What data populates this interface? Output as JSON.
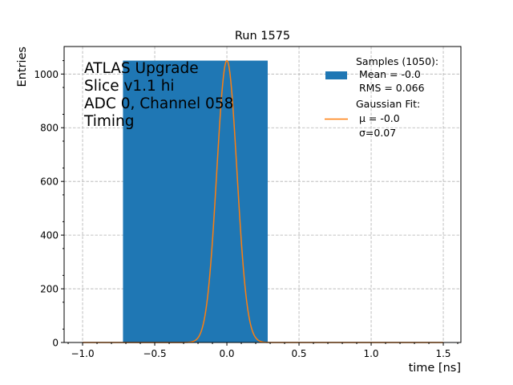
{
  "chart_data": {
    "type": "bar",
    "title": "Run 1575",
    "xlabel": "time [ns]",
    "ylabel": "Entries",
    "xlim": [
      -1.128,
      1.622
    ],
    "ylim": [
      0,
      1102.5
    ],
    "xticks": [
      -1.0,
      -0.5,
      0.0,
      0.5,
      1.0,
      1.5
    ],
    "xtick_labels": [
      "−1.0",
      "−0.5",
      "0.0",
      "0.5",
      "1.0",
      "1.5"
    ],
    "yticks": [
      0,
      200,
      400,
      600,
      800,
      1000
    ],
    "ytick_labels": [
      "0",
      "200",
      "400",
      "600",
      "800",
      "1000"
    ],
    "grid": true,
    "annotation": [
      "ATLAS Upgrade",
      "Slice v1.1 hi",
      "ADC 0, Channel 058",
      "Timing"
    ],
    "histogram": {
      "name": "Samples",
      "bin_edges": [
        -0.72,
        0.283
      ],
      "counts": [
        1050
      ],
      "color": "#1f77b4"
    },
    "fit": {
      "name": "Gaussian Fit",
      "amplitude": 1050,
      "mu": 0.0,
      "sigma": 0.07,
      "x_range": [
        -1.0,
        1.5
      ],
      "color": "#ff7f0e"
    },
    "legend": {
      "placement": "top-right",
      "entries": [
        {
          "lines": [
            "Samples (1050):",
            " Mean = -0.0",
            " RMS = 0.066"
          ]
        },
        {
          "lines": [
            "Gaussian Fit:",
            " μ = -0.0",
            " σ=0.07"
          ]
        }
      ]
    }
  }
}
